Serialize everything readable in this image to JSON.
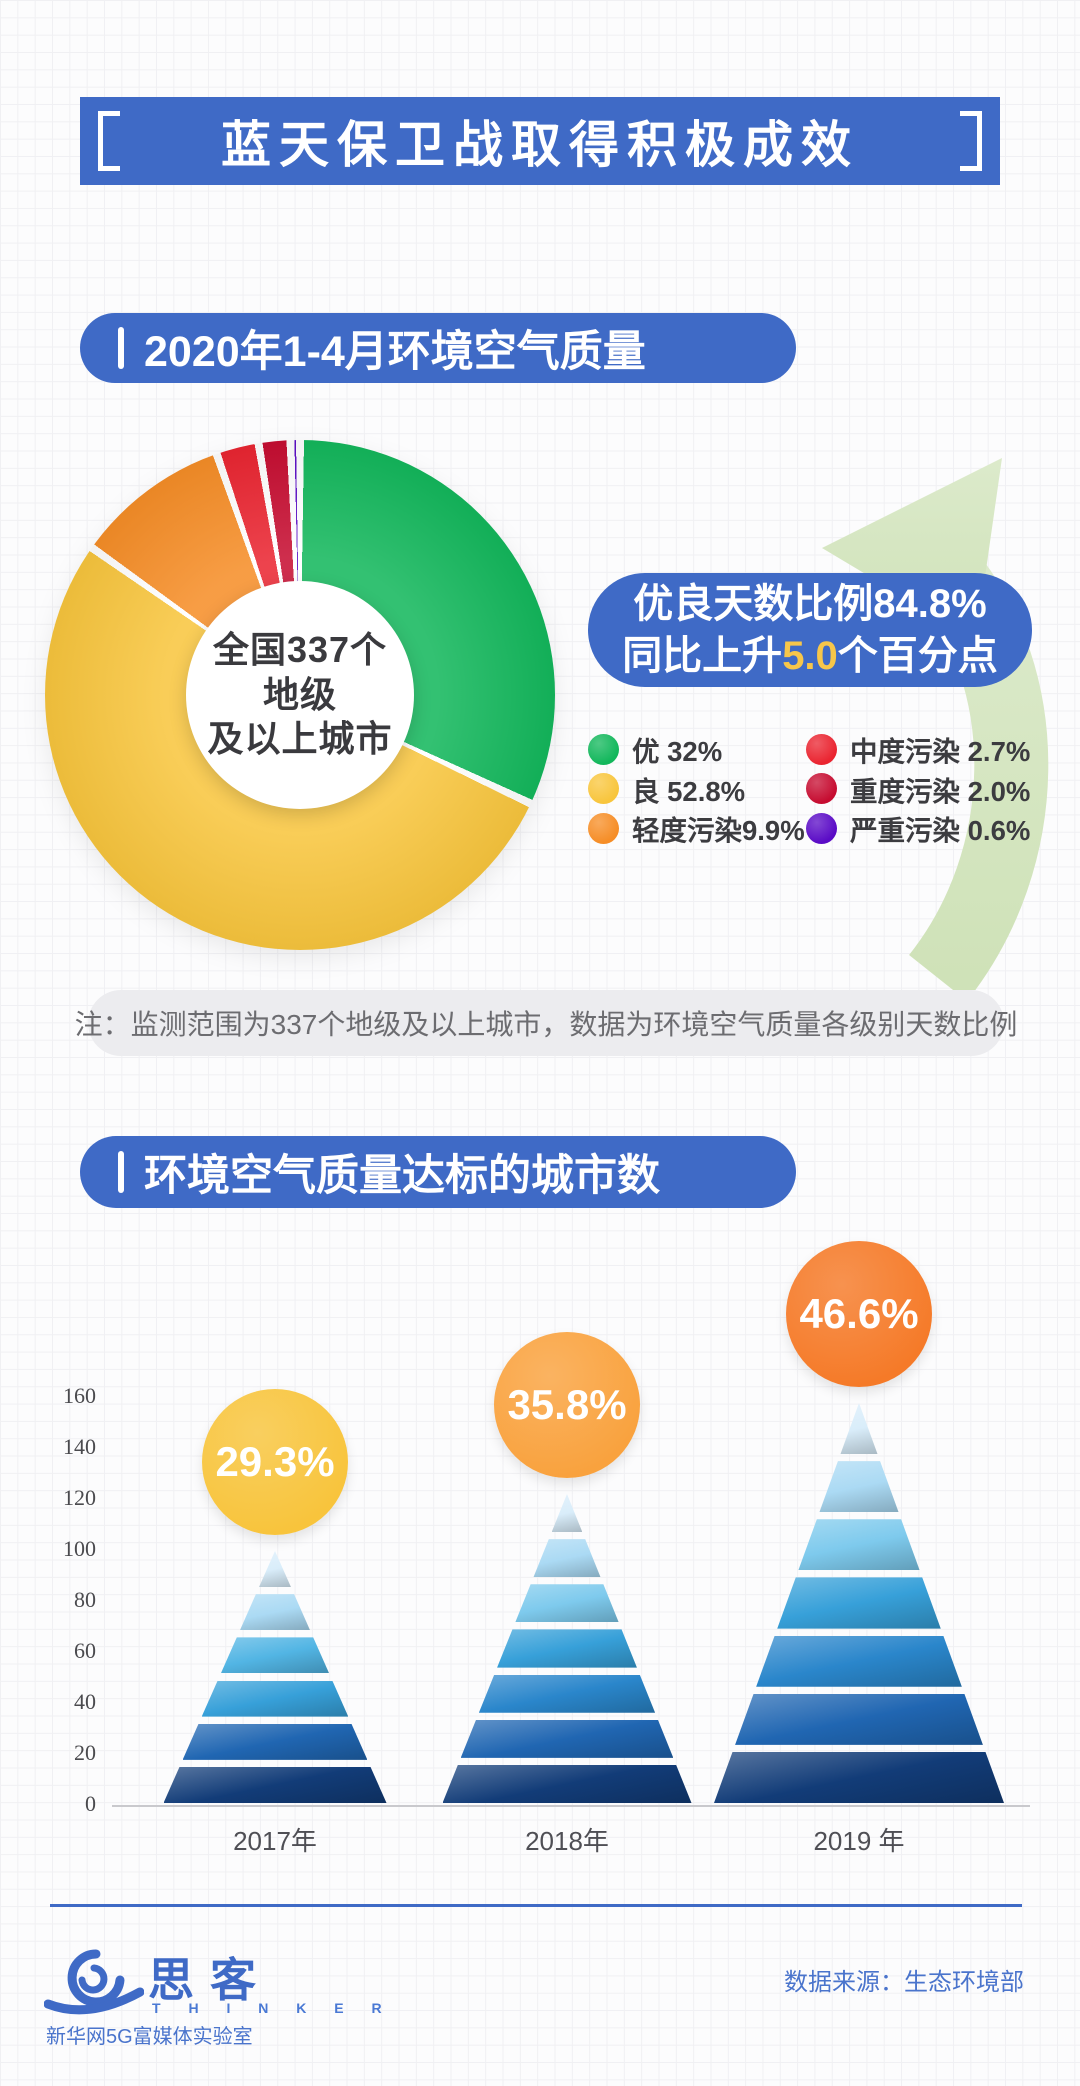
{
  "banner": {
    "title": "蓝天保卫战取得积极成效",
    "bg_color": "#3F6AC6"
  },
  "section1": {
    "header": "2020年1-4月环境空气质量",
    "center_lines": [
      "全国337个",
      "地级",
      "及以上城市"
    ],
    "callout": {
      "line1": "优良天数比例84.8%",
      "line2_prefix": "同比上升",
      "line2_highlight": "5.0",
      "line2_suffix": "个百分点",
      "highlight_color": "#F7C64A"
    },
    "legend_columns": [
      [
        {
          "text": "优 32%",
          "color": "#12B75B"
        },
        {
          "text": "良 52.8%",
          "color": "#F8C53C"
        },
        {
          "text": "轻度污染9.9%",
          "color": "#F68D26"
        }
      ],
      [
        {
          "text": "中度污染 2.7%",
          "color": "#EA2430"
        },
        {
          "text": "重度污染 2.0%",
          "color": "#C60C30"
        },
        {
          "text": "严重污染 0.6%",
          "color": "#5A0BC6"
        }
      ]
    ],
    "note": "注：监测范围为337个地级及以上城市，数据为环境空气质量各级别天数比例"
  },
  "section2": {
    "header": "环境空气质量达标的城市数"
  },
  "footer": {
    "brand_cn": "思客",
    "brand_en": "T H I N K E R",
    "lab": "新华网5G富媒体实验室",
    "source": "数据来源：生态环境部"
  },
  "chart_data": [
    {
      "type": "pie",
      "title": "2020年1-4月环境空气质量",
      "center_label": "全国337个地级及以上城市",
      "annotation": "优良天数比例84.8%，同比上升5.0个百分点",
      "legend_position": "right",
      "donut": true,
      "slices": [
        {
          "label": "优",
          "value": 32,
          "color": "#12B75B"
        },
        {
          "label": "良",
          "value": 52.8,
          "color": "#F8C53C"
        },
        {
          "label": "轻度污染",
          "value": 9.9,
          "color": "#F68D26"
        },
        {
          "label": "中度污染",
          "value": 2.7,
          "color": "#EA2430"
        },
        {
          "label": "重度污染",
          "value": 2.0,
          "color": "#C60C30"
        },
        {
          "label": "严重污染",
          "value": 0.6,
          "color": "#5A0BC6"
        }
      ]
    },
    {
      "type": "bar",
      "title": "环境空气质量达标的城市数",
      "categories": [
        "2017年",
        "2018年",
        "2019 年"
      ],
      "values": [
        99,
        121,
        157
      ],
      "labels": [
        "29.3%",
        "35.8%",
        "46.6%"
      ],
      "bubble_colors": [
        "#F8C43C",
        "#F9A23E",
        "#F57A28"
      ],
      "segments": [
        6,
        7,
        7
      ],
      "ylabel": "",
      "xlabel": "",
      "ylim": [
        0,
        160
      ],
      "yticks": [
        0,
        20,
        40,
        60,
        80,
        100,
        120,
        140,
        160
      ],
      "grid": false,
      "bar_style": "stacked-pyramid"
    }
  ]
}
